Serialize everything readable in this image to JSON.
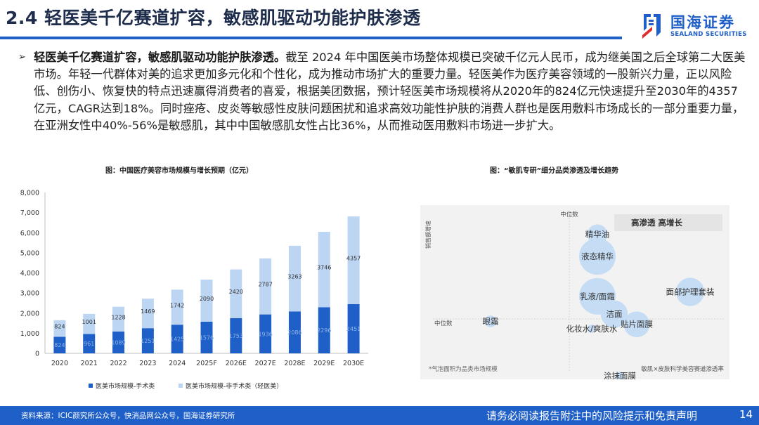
{
  "header": {
    "title": "2.4 轻医美千亿赛道扩容，敏感肌驱动功能护肤渗透",
    "logo_cn": "国海证券",
    "logo_en": "SEALAND SECURITIES"
  },
  "body": {
    "bullet": "➢",
    "lead": "轻医美千亿赛道扩容，敏感肌驱动功能护肤渗透。",
    "text": "截至 2024 年中国医美市场整体规模已突破千亿元人民币，成为继美国之后全球第二大医美市场。年轻一代群体对美的追求更加多元化和个性化，成为推动市场扩大的重要力量。轻医美作为医疗美容领域的一股新兴力量，正以风险低、创伤小、恢复快的特点迅速赢得消费者的喜爱，根据美团数据，预计轻医美市场规模将从2020年的824亿元快速提升至2030年的4357亿元，CAGR达到18%。同时痤疮、皮炎等敏感性皮肤问题困扰和追求高效功能性护肤的消费人群也是医用敷料市场成长的一部分重要力量，在亚洲女性中40%-56%是敏感肌，其中中国敏感肌女性占比36%，从而推动医用敷料市场进一步扩大。"
  },
  "captions": {
    "chart1": "图：中国医疗美容市场规模与增长预期（亿元）",
    "chart2": "图：“敏肌专研”细分品类渗透及增长趋势"
  },
  "chart_data": [
    {
      "type": "bar",
      "stacked": true,
      "categories": [
        "2020",
        "2021",
        "2022",
        "2023",
        "2024",
        "2025F",
        "2026E",
        "2027E",
        "2028E",
        "2029E",
        "2030E"
      ],
      "series": [
        {
          "name": "医美市场规模-手术类",
          "values": [
            824,
            961,
            1089,
            1251,
            1425,
            1576,
            1753,
            1936,
            2086,
            2296,
            2451
          ],
          "color": "#1f5fc8"
        },
        {
          "name": "医美市场规模-非手术类（轻医美）",
          "values": [
            824,
            1001,
            1228,
            1469,
            1742,
            2090,
            2420,
            2787,
            3263,
            3746,
            4357
          ],
          "color": "#bcd5f3"
        }
      ],
      "y_ticks": [
        "0",
        "1,000",
        "2,000",
        "3,000",
        "4,000",
        "5,000",
        "6,000",
        "7,000",
        "8,000"
      ],
      "ylim": [
        0,
        8000
      ],
      "legend_position": "bottom",
      "grid": false
    },
    {
      "type": "scatter",
      "bubble": true,
      "y_axis_label": "销售额增速",
      "x_axis_label": "敏肌×皮肤科学美容赛道渗透率",
      "median_label_x": "中位数",
      "median_label_y": "中位数",
      "quadrant_label": "高渗透 高增长",
      "footnote": "*气泡面积为品类市场规模",
      "bubble_color": "#c5dcf5",
      "points": [
        {
          "label": "精华油",
          "x": 0.58,
          "y": 0.84,
          "size": 0.3
        },
        {
          "label": "液态精华",
          "x": 0.58,
          "y": 0.69,
          "size": 1.0
        },
        {
          "label": "乳液/面霜",
          "x": 0.58,
          "y": 0.42,
          "size": 1.0
        },
        {
          "label": "洁面",
          "x": 0.64,
          "y": 0.3,
          "size": 0.55
        },
        {
          "label": "面部护理套装",
          "x": 0.91,
          "y": 0.45,
          "size": 0.6
        },
        {
          "label": "眼霜",
          "x": 0.2,
          "y": 0.25,
          "size": 0.1
        },
        {
          "label": "贴片面膜",
          "x": 0.72,
          "y": 0.23,
          "size": 0.5
        },
        {
          "label": "化妆水/爽肤水",
          "x": 0.56,
          "y": 0.2,
          "size": 0.05
        },
        {
          "label": "涂抹面膜",
          "x": 0.66,
          "y": -0.12,
          "size": 0.05
        }
      ]
    }
  ],
  "footer": {
    "source": "资料来源：ICIC颜究所公众号，快消品网公众号，国海证券研究所",
    "disclaimer": "请务必阅读报告附注中的风险提示和免责声明",
    "page": "14"
  }
}
